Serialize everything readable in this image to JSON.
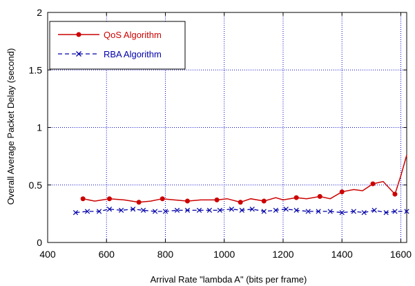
{
  "chart_data": {
    "type": "line",
    "title": "",
    "xlabel": "Arrival Rate \"lambda A\" (bits per frame)",
    "ylabel": "Overall Average Packet Delay (second)",
    "xlim": [
      400,
      1620
    ],
    "ylim": [
      0,
      2
    ],
    "xticks": [
      400,
      600,
      800,
      1000,
      1200,
      1400,
      1600
    ],
    "xtick_labels": [
      "400",
      "600",
      "800",
      "1000",
      "1200",
      "1400",
      "1600"
    ],
    "yticks": [
      0,
      0.5,
      1,
      1.5,
      2
    ],
    "ytick_labels": [
      "0",
      "0.5",
      "1",
      "1.5",
      "2"
    ],
    "grid": true,
    "legend_position": "top-left",
    "series": [
      {
        "name": "QoS Algorithm",
        "color": "#cc0000",
        "line_style": "solid",
        "marker": "dot",
        "x": [
          520,
          560,
          610,
          660,
          710,
          750,
          790,
          830,
          875,
          920,
          975,
          1010,
          1055,
          1090,
          1135,
          1175,
          1200,
          1245,
          1280,
          1325,
          1360,
          1400,
          1440,
          1470,
          1505,
          1540,
          1580,
          1600,
          1620
        ],
        "y": [
          0.38,
          0.36,
          0.38,
          0.37,
          0.35,
          0.36,
          0.38,
          0.37,
          0.36,
          0.37,
          0.37,
          0.38,
          0.35,
          0.38,
          0.36,
          0.39,
          0.37,
          0.39,
          0.38,
          0.4,
          0.38,
          0.44,
          0.46,
          0.45,
          0.51,
          0.53,
          0.42,
          0.58,
          0.76
        ],
        "markers_at": [
          520,
          610,
          710,
          790,
          875,
          975,
          1055,
          1135,
          1245,
          1325,
          1400,
          1505,
          1580
        ]
      },
      {
        "name": "RBA Algorithm",
        "color": "#0000aa",
        "line_style": "dashed",
        "marker": "x",
        "x": [
          495,
          535,
          575,
          610,
          650,
          690,
          725,
          765,
          800,
          840,
          875,
          915,
          950,
          985,
          1025,
          1060,
          1095,
          1135,
          1175,
          1210,
          1245,
          1285,
          1320,
          1360,
          1400,
          1440,
          1475,
          1510,
          1550,
          1580,
          1620
        ],
        "y": [
          0.26,
          0.27,
          0.27,
          0.29,
          0.28,
          0.29,
          0.28,
          0.27,
          0.27,
          0.28,
          0.28,
          0.28,
          0.28,
          0.28,
          0.29,
          0.28,
          0.29,
          0.27,
          0.28,
          0.29,
          0.28,
          0.27,
          0.27,
          0.27,
          0.26,
          0.27,
          0.26,
          0.28,
          0.26,
          0.27,
          0.27
        ]
      }
    ]
  }
}
